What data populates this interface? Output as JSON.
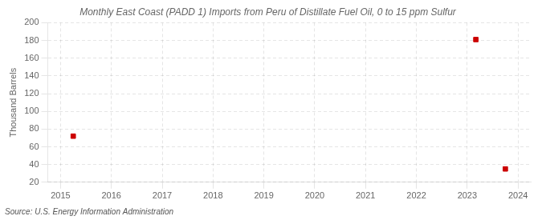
{
  "chart_data": {
    "type": "scatter",
    "title": "Monthly East Coast (PADD 1) Imports from Peru of Distillate Fuel Oil, 0 to 15 ppm Sulfur",
    "ylabel": "Thousand Barrels",
    "annotation": "Source: U.S. Energy Information Administration",
    "x": [
      2015.25,
      2023.17,
      2023.75
    ],
    "values": [
      72,
      181,
      35
    ],
    "color": "#cc0000",
    "marker": "square",
    "xlim": [
      2014.75,
      2024.25
    ],
    "ylim": [
      20,
      200
    ],
    "xticks": [
      2015,
      2016,
      2017,
      2018,
      2019,
      2020,
      2021,
      2022,
      2023,
      2024
    ],
    "yticks": [
      20,
      40,
      60,
      80,
      100,
      120,
      140,
      160,
      180,
      200
    ],
    "grid": true
  }
}
